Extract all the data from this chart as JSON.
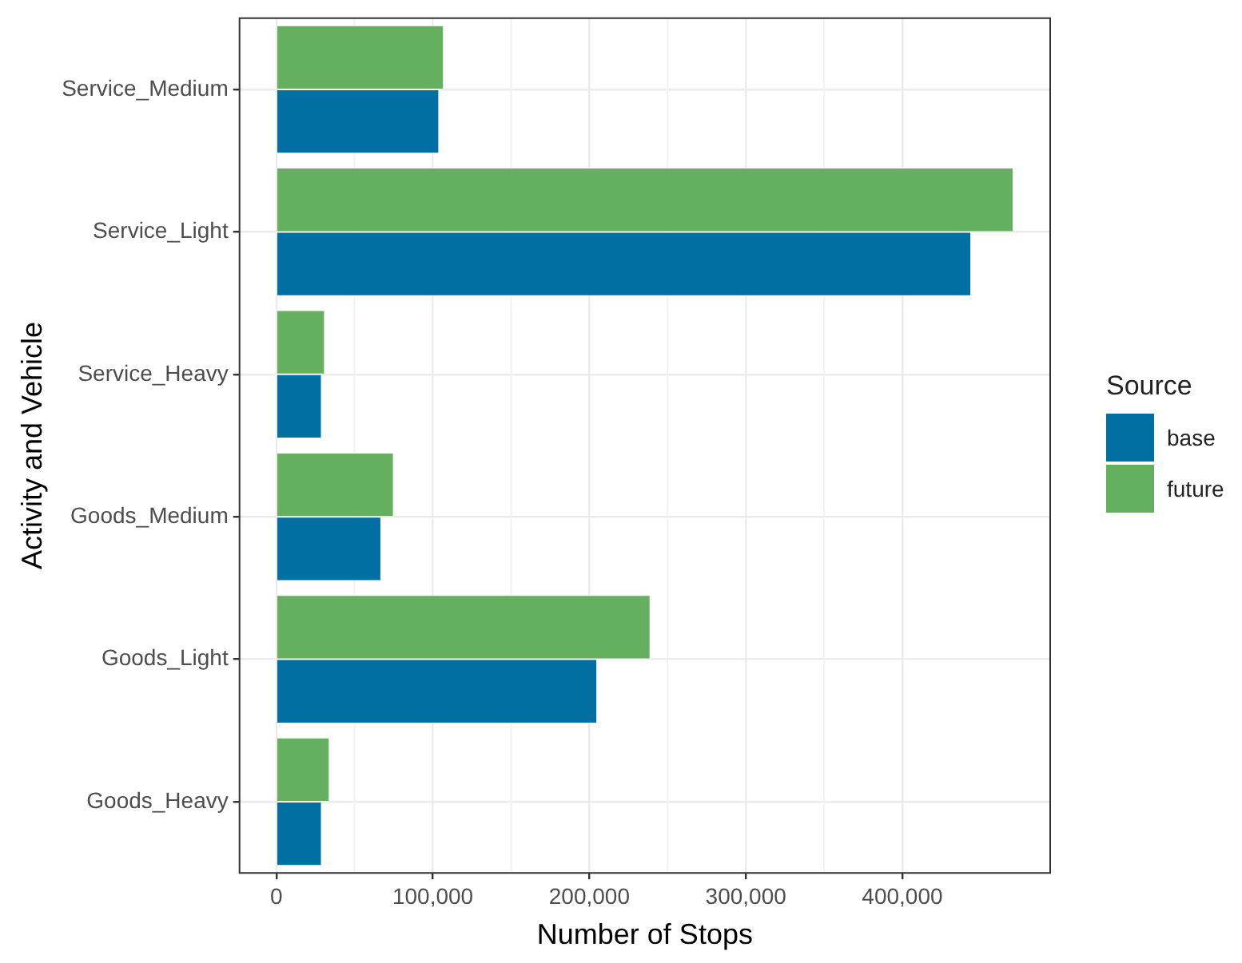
{
  "chart_data": {
    "type": "bar",
    "orientation": "horizontal",
    "xlabel": "Number of Stops",
    "ylabel": "Activity and Vehicle",
    "legend_title": "Source",
    "categories": [
      "Service_Medium",
      "Service_Light",
      "Service_Heavy",
      "Goods_Medium",
      "Goods_Light",
      "Goods_Heavy"
    ],
    "series": [
      {
        "name": "base",
        "color": "#016fa2",
        "values": [
          104000,
          444000,
          29000,
          67000,
          205000,
          29000
        ]
      },
      {
        "name": "future",
        "color": "#65b05e",
        "values": [
          107000,
          471000,
          31000,
          75000,
          239000,
          34000
        ]
      }
    ],
    "xlim": [
      -23500,
      494500
    ],
    "xticks": [
      {
        "value": 0,
        "label": "0"
      },
      {
        "value": 100000,
        "label": "100,000"
      },
      {
        "value": 200000,
        "label": "200,000"
      },
      {
        "value": 300000,
        "label": "300,000"
      },
      {
        "value": 400000,
        "label": "400,000"
      }
    ],
    "grid": true,
    "legend": "right"
  }
}
